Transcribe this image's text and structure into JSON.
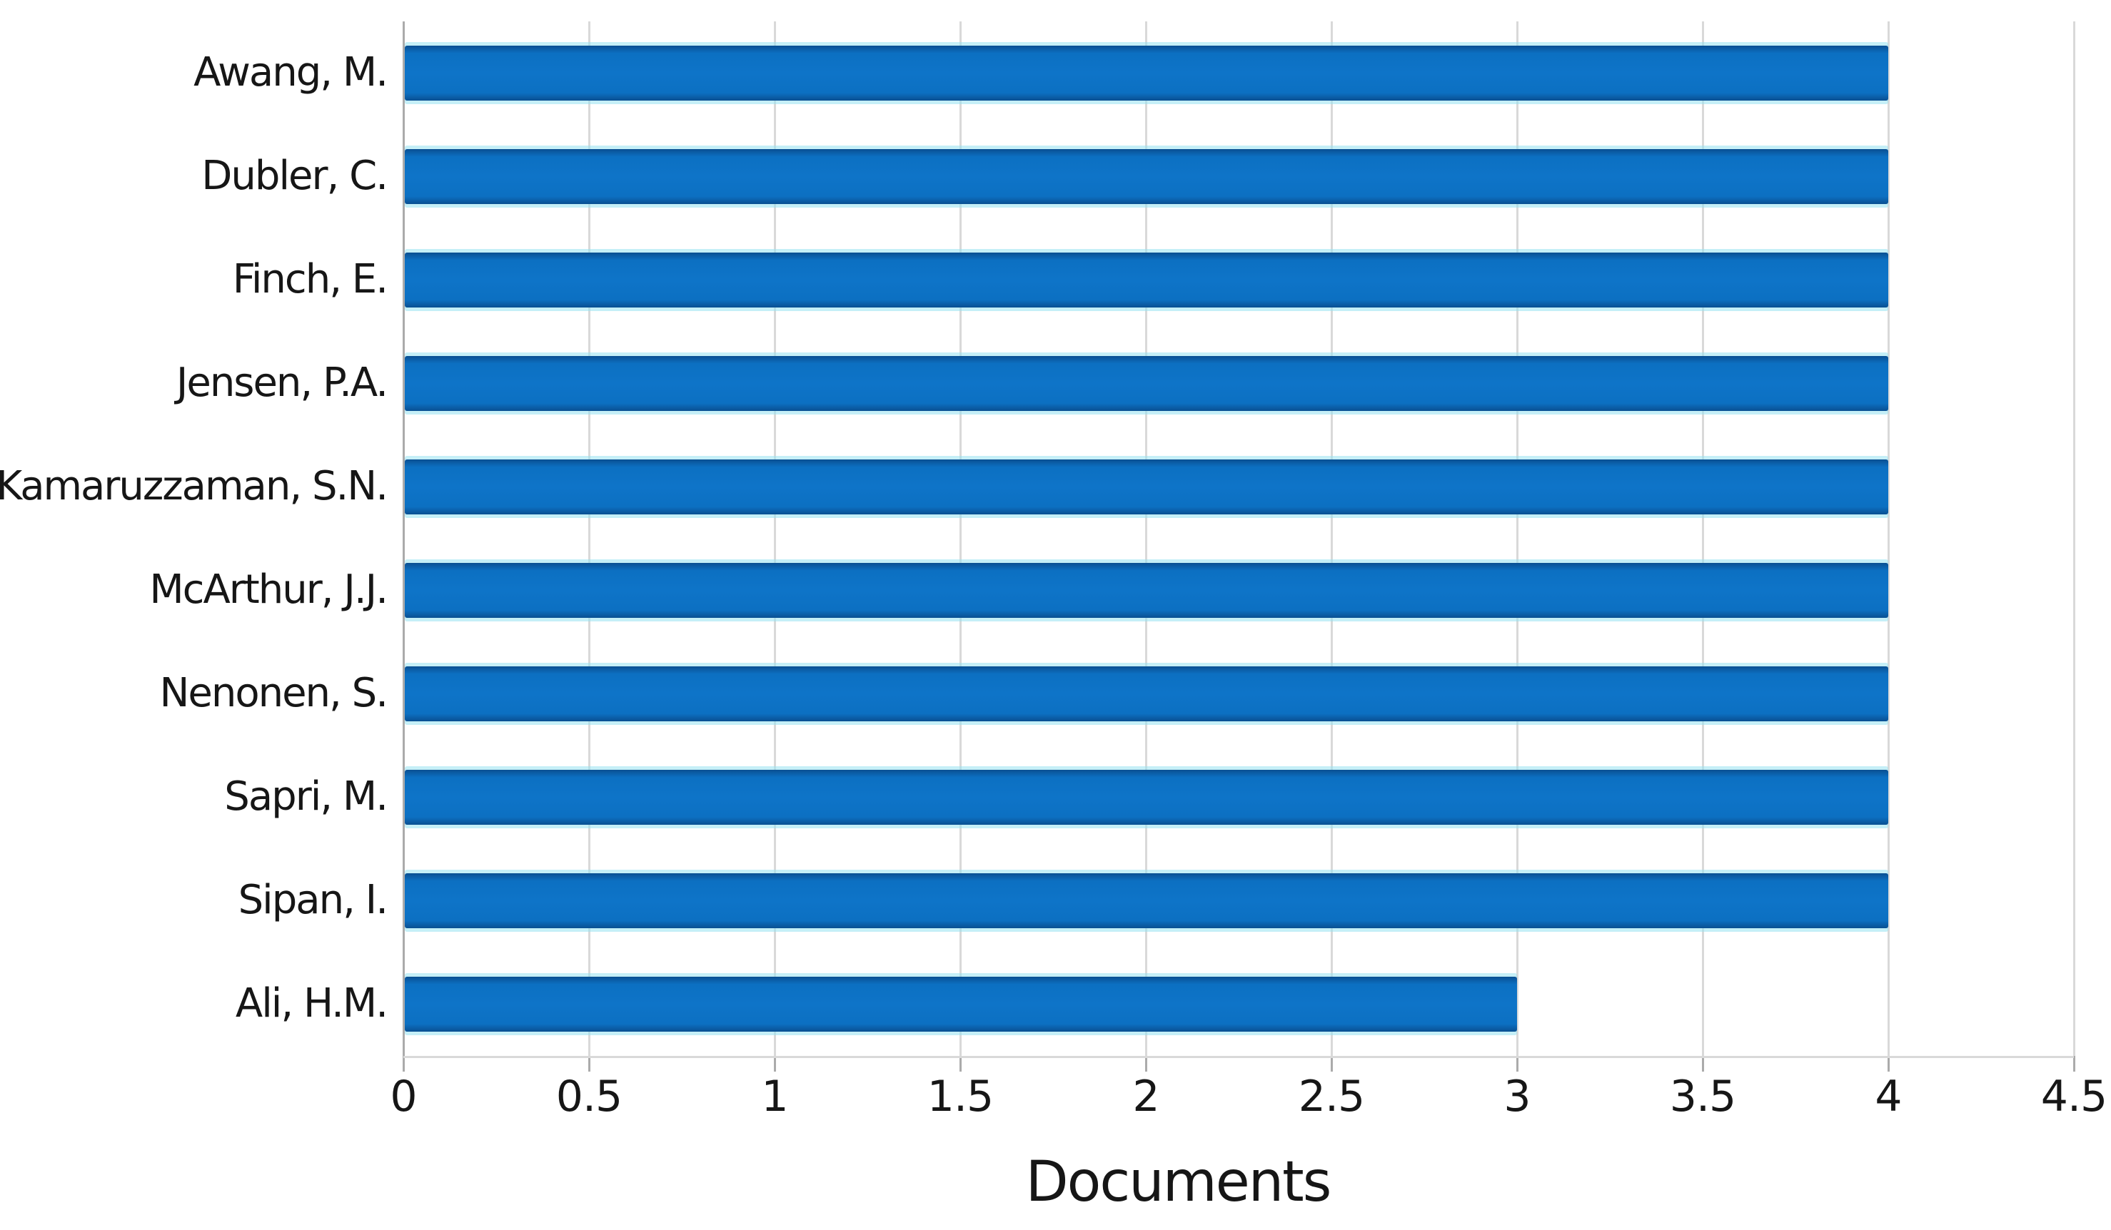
{
  "chart_data": {
    "type": "bar",
    "orientation": "horizontal",
    "title": "",
    "xlabel": "Documents",
    "ylabel": "",
    "categories": [
      "Awang, M.",
      "Dubler, C.",
      "Finch, E.",
      "Jensen, P.A.",
      "Kamaruzzaman, S.N.",
      "McArthur, J.J.",
      "Nenonen, S.",
      "Sapri, M.",
      "Sipan, I.",
      "Ali, H.M."
    ],
    "values": [
      4,
      4,
      4,
      4,
      4,
      4,
      4,
      4,
      4,
      3
    ],
    "xlim": [
      0,
      4.5
    ],
    "xticks": [
      0,
      0.5,
      1,
      1.5,
      2,
      2.5,
      3,
      3.5,
      4,
      4.5
    ],
    "xtick_labels": [
      "0",
      "0.5",
      "1",
      "1.5",
      "2",
      "2.5",
      "3",
      "3.5",
      "4",
      "4.5"
    ],
    "grid": "vertical",
    "legend": "none",
    "colors": {
      "bar_fill": "#0c70c2",
      "bar_fill_mid": "#0e74c8",
      "bar_edge": "#0a4f92",
      "gridline": "#d9d9d9",
      "axis_line": "#ababab",
      "text": "#161616"
    }
  }
}
